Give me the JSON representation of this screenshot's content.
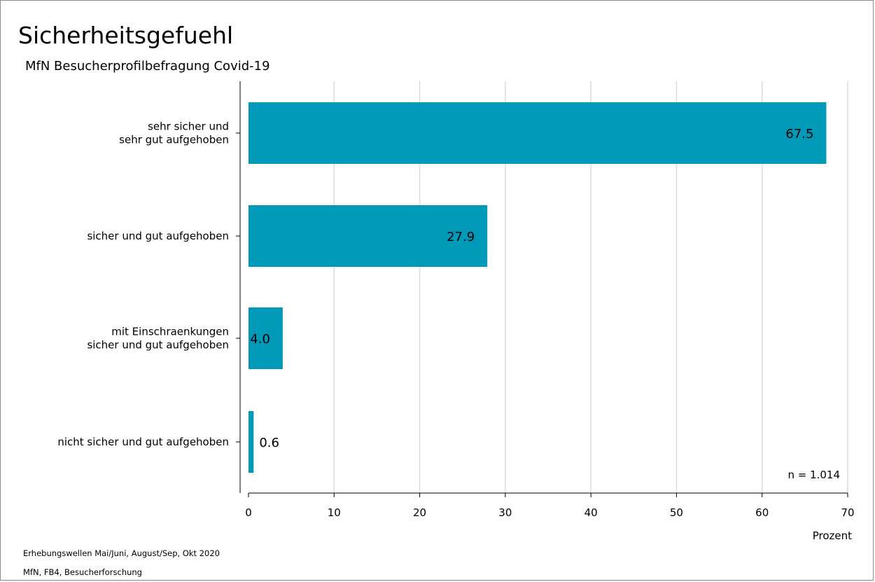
{
  "chart_data": {
    "type": "bar",
    "orientation": "horizontal",
    "title": "Sicherheitsgefuehl",
    "subtitle": "MfN Besucherprofilbefragung Covid-19",
    "categories": [
      [
        "sehr sicher und",
        "sehr gut aufgehoben"
      ],
      [
        "sicher und gut aufgehoben"
      ],
      [
        "mit Einschraenkungen",
        "sicher und gut aufgehoben"
      ],
      [
        "nicht sicher und gut aufgehoben"
      ]
    ],
    "values": [
      67.5,
      27.9,
      4.0,
      0.6
    ],
    "value_labels": [
      "67.5",
      "27.9",
      "4.0",
      "0.6"
    ],
    "xlabel": "Prozent",
    "xlim": [
      0,
      70
    ],
    "xticks": [
      0,
      10,
      20,
      30,
      40,
      50,
      60,
      70
    ],
    "grid": true,
    "bar_color": "#0099b8",
    "annotation": "n = 1.014"
  },
  "footnotes": [
    "Erhebungswellen Mai/Juni, August/Sep, Okt 2020",
    "MfN, FB4, Besucherforschung"
  ]
}
